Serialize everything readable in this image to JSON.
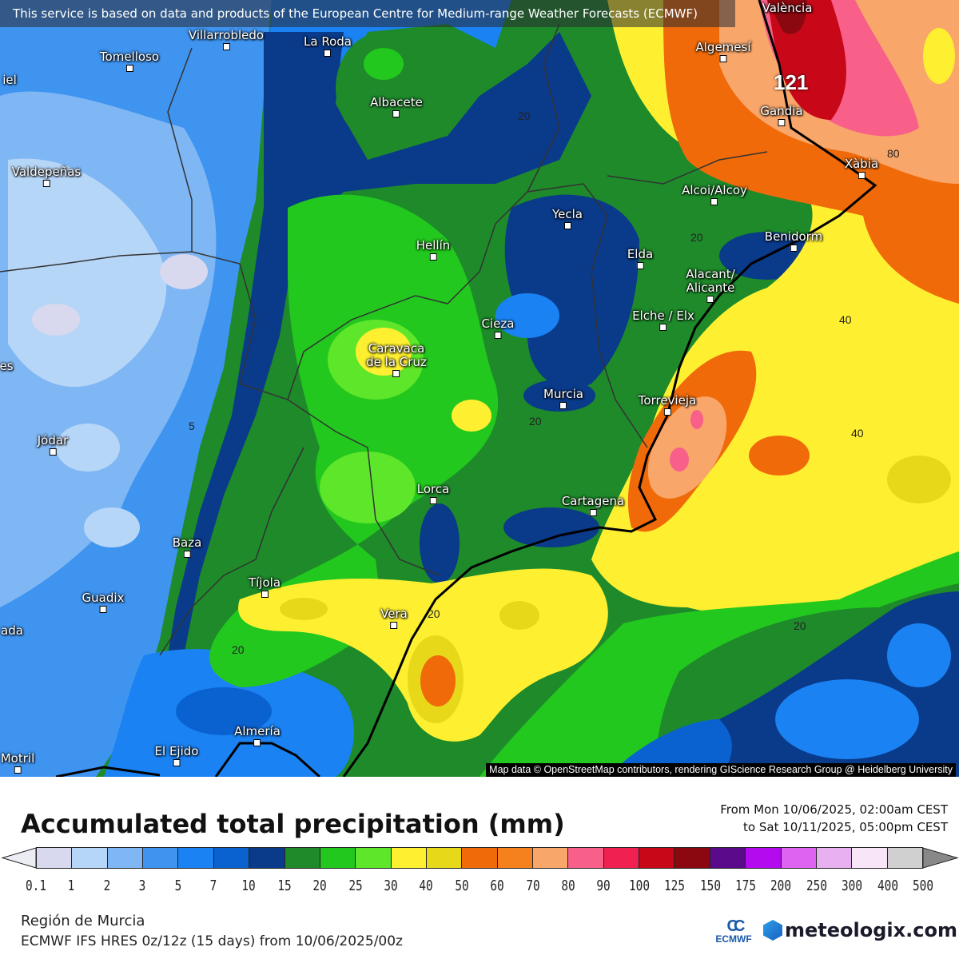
{
  "banner": "This service is based on data and products of the European Centre for Medium-range Weather Forecasts (ECMWF)",
  "attribution": "Map data © OpenStreetMap contributors, rendering GIScience Research Group @ Heidelberg University",
  "cities": {
    "valencia": "València",
    "villarrobledo": "Villarrobledo",
    "la_roda": "La Roda",
    "tomelloso": "Tomelloso",
    "daimiel": "iel",
    "albacete": "Albacete",
    "algemesi": "Algemesí",
    "gandia": "Gandia",
    "xabia": "Xàbia",
    "valdepenas": "Valdepeñas",
    "alcoi": "Alcoi/Alcoy",
    "yecla": "Yecla",
    "benidorm": "Benidorm",
    "hellin": "Hellín",
    "elda": "Elda",
    "alicante_1": "Alacant/",
    "alicante_2": "Alicante",
    "elche": "Elche / Elx",
    "cieza": "Cieza",
    "caravaca_1": "Caravaca",
    "caravaca_2": "de la Cruz",
    "linares": "es",
    "murcia": "Murcia",
    "torrevieja": "Torrevieja",
    "jodar": "Jódar",
    "lorca": "Lorca",
    "cartagena": "Cartagena",
    "baza": "Baza",
    "tijola": "Tíjola",
    "guadix": "Guadix",
    "vera": "Vera",
    "granada": "ada",
    "almeria": "Almería",
    "el_ejido": "El Ejido",
    "motril": "Motril"
  },
  "contour_labels": [
    "20",
    "20",
    "20",
    "20",
    "20",
    "20",
    "5",
    "40",
    "40",
    "80",
    "121"
  ],
  "title": "Accumulated total precipitation (mm)",
  "period": {
    "from": "From Mon 10/06/2025, 02:00am CEST",
    "to": "to Sat 10/11/2025, 05:00pm CEST"
  },
  "legend": {
    "ticks": [
      "0.1",
      "1",
      "2",
      "3",
      "5",
      "7",
      "10",
      "15",
      "20",
      "25",
      "30",
      "40",
      "50",
      "60",
      "70",
      "80",
      "90",
      "100",
      "125",
      "150",
      "175",
      "200",
      "250",
      "300",
      "400",
      "500"
    ],
    "colors": [
      "#d8d8ee",
      "#b6d6f8",
      "#7fb6f4",
      "#3f94f0",
      "#1a82f2",
      "#0a62d0",
      "#0a3a8a",
      "#1e8a2a",
      "#22c81e",
      "#5ee62a",
      "#fef030",
      "#e8d81a",
      "#f06a0a",
      "#f5801e",
      "#f8a66a",
      "#f8608a",
      "#f02050",
      "#c80818",
      "#8c0810",
      "#5a0a8a",
      "#b40af0",
      "#dc64f0",
      "#e8b0f0",
      "#f8e6f8",
      "#d0d0d0"
    ]
  },
  "region": "Región de Murcia",
  "model": "ECMWF IFS HRES 0z/12z (15 days) from  10/06/2025/00z",
  "logos": {
    "ecmwf": "ECMWF",
    "meteologix": "meteologix.com"
  }
}
